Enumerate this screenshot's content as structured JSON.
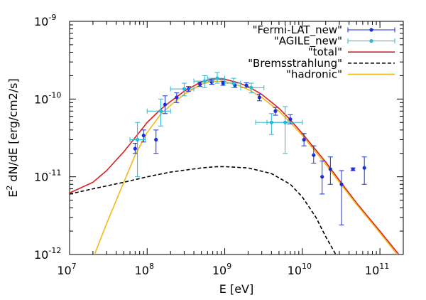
{
  "chart_data": {
    "type": "scatter",
    "xscale": "log",
    "yscale": "log",
    "xlim": [
      10000000.0,
      200000000000.0
    ],
    "ylim": [
      1e-12,
      1e-09
    ],
    "xlabel": "E [eV]",
    "ylabel_prefix": "E",
    "ylabel_sup": "2",
    "ylabel_suffix": " dN/dE [erg/cm2/s]",
    "x_ticks": [
      {
        "base": "10",
        "exp": "7",
        "value": 10000000.0
      },
      {
        "base": "10",
        "exp": "8",
        "value": 100000000.0
      },
      {
        "base": "10",
        "exp": "9",
        "value": 1000000000.0
      },
      {
        "base": "10",
        "exp": "10",
        "value": 10000000000.0
      },
      {
        "base": "10",
        "exp": "11",
        "value": 100000000000.0
      }
    ],
    "y_ticks": [
      {
        "base": "10",
        "exp": "-12",
        "value": 1e-12
      },
      {
        "base": "10",
        "exp": "-11",
        "value": 1e-11
      },
      {
        "base": "10",
        "exp": "-10",
        "value": 1e-10
      },
      {
        "base": "10",
        "exp": "-9",
        "value": 1e-09
      }
    ],
    "legend_position": "top-right",
    "series": [
      {
        "name": "\"Fermi-LAT_new\"",
        "kind": "points",
        "color": "#1a2fd8",
        "points": [
          {
            "x": 70000000.0,
            "y": 2.3e-11,
            "yerr": [
              2e-11,
              2.7e-11
            ]
          },
          {
            "x": 90000000.0,
            "y": 3.4e-11,
            "yerr": [
              2.8e-11,
              4e-11
            ]
          },
          {
            "x": 130000000.0,
            "y": 3e-11,
            "yerr": [
              2e-11,
              4e-11
            ]
          },
          {
            "x": 170000000.0,
            "y": 8.5e-11,
            "yerr": [
              6.5e-11,
              1.1e-10
            ]
          },
          {
            "x": 240000000.0,
            "y": 1.05e-10,
            "yerr": [
              9e-11,
              1.2e-10
            ]
          },
          {
            "x": 340000000.0,
            "y": 1.35e-10,
            "yerr": [
              1.25e-10,
              1.45e-10
            ]
          },
          {
            "x": 480000000.0,
            "y": 1.55e-10,
            "yerr": [
              1.45e-10,
              1.65e-10
            ]
          },
          {
            "x": 680000000.0,
            "y": 1.65e-10,
            "yerr": [
              1.55e-10,
              1.75e-10
            ]
          },
          {
            "x": 950000000.0,
            "y": 1.6e-10,
            "yerr": [
              1.5e-10,
              1.7e-10
            ]
          },
          {
            "x": 1350000000.0,
            "y": 1.5e-10,
            "yerr": [
              1.4e-10,
              1.6e-10
            ]
          },
          {
            "x": 1900000000.0,
            "y": 1.5e-10,
            "yerr": [
              1.4e-10,
              1.62e-10
            ]
          },
          {
            "x": 2800000000.0,
            "y": 1.05e-10,
            "yerr": [
              9.5e-11,
              1.15e-10
            ]
          },
          {
            "x": 4500000000.0,
            "y": 7e-11,
            "yerr": [
              6.2e-11,
              7.8e-11
            ]
          },
          {
            "x": 7000000000.0,
            "y": 5.5e-11,
            "yerr": [
              4.8e-11,
              6.3e-11
            ]
          },
          {
            "x": 10500000000.0,
            "y": 3e-11,
            "yerr": [
              2.5e-11,
              3.6e-11
            ]
          },
          {
            "x": 14000000000.0,
            "y": 1.9e-11,
            "yerr": [
              1.5e-11,
              2.5e-11
            ]
          },
          {
            "x": 18000000000.0,
            "y": 1e-11,
            "yerr": [
              6e-12,
              1.6e-11
            ]
          },
          {
            "x": 23000000000.0,
            "y": 1.25e-11,
            "yerr": [
              8e-12,
              1.8e-11
            ]
          },
          {
            "x": 32000000000.0,
            "y": 8e-12,
            "yerr": [
              2.4e-12,
              1.2e-11
            ]
          },
          {
            "x": 45000000000.0,
            "y": 1.25e-11,
            "yerr": [
              1.2e-11,
              1.3e-11
            ]
          },
          {
            "x": 63000000000.0,
            "y": 1.3e-11,
            "yerr": [
              8e-12,
              1.8e-11
            ]
          }
        ]
      },
      {
        "name": "\"AGILE_new\"",
        "kind": "points",
        "color": "#2ab8d8",
        "points": [
          {
            "x": 75000000.0,
            "y": 3e-11,
            "xerr": [
              60000000.0,
              95000000.0
            ],
            "yerr": [
              1e-11,
              5e-11
            ]
          },
          {
            "x": 150000000.0,
            "y": 7e-11,
            "xerr": [
              100000000.0,
              200000000.0
            ],
            "yerr": [
              4.5e-11,
              1e-10
            ]
          },
          {
            "x": 300000000.0,
            "y": 1.35e-10,
            "xerr": [
              200000000.0,
              400000000.0
            ],
            "yerr": [
              1.1e-10,
              1.6e-10
            ]
          },
          {
            "x": 550000000.0,
            "y": 1.7e-10,
            "xerr": [
              400000000.0,
              700000000.0
            ],
            "yerr": [
              1.4e-10,
              2e-10
            ]
          },
          {
            "x": 800000000.0,
            "y": 1.85e-10,
            "xerr": [
              600000000.0,
              1000000000.0
            ],
            "yerr": [
              1.6e-10,
              2.2e-10
            ]
          },
          {
            "x": 1300000000.0,
            "y": 1.6e-10,
            "xerr": [
              1000000000.0,
              1600000000.0
            ],
            "yerr": [
              1.4e-10,
              1.85e-10
            ]
          },
          {
            "x": 2200000000.0,
            "y": 1.4e-10,
            "xerr": [
              1600000000.0,
              3200000000.0
            ],
            "yerr": [
              1.2e-10,
              1.6e-10
            ]
          },
          {
            "x": 4000000000.0,
            "y": 5e-11,
            "xerr": [
              2500000000.0,
              6500000000.0
            ],
            "yerr": [
              3.5e-11,
              6.5e-11
            ]
          },
          {
            "x": 6000000000.0,
            "y": 5e-11,
            "xerr": [
              3500000000.0,
              10000000000.0
            ],
            "yerr": [
              2e-11,
              8e-11
            ]
          }
        ]
      },
      {
        "name": "\"total\"",
        "kind": "line",
        "color": "#dd1f1f",
        "points": [
          [
            10000000.0,
            6.2e-12
          ],
          [
            20000000.0,
            8.5e-12
          ],
          [
            30000000.0,
            1.2e-11
          ],
          [
            50000000.0,
            2.1e-11
          ],
          [
            70000000.0,
            3.2e-11
          ],
          [
            100000000.0,
            5e-11
          ],
          [
            150000000.0,
            7.4e-11
          ],
          [
            200000000.0,
            9.3e-11
          ],
          [
            300000000.0,
            1.26e-10
          ],
          [
            500000000.0,
            1.67e-10
          ],
          [
            700000000.0,
            1.82e-10
          ],
          [
            1000000000.0,
            1.8e-10
          ],
          [
            1500000000.0,
            1.62e-10
          ],
          [
            2000000000.0,
            1.45e-10
          ],
          [
            3000000000.0,
            1.15e-10
          ],
          [
            5000000000.0,
            7.6e-11
          ],
          [
            7000000000.0,
            5.4e-11
          ],
          [
            10000000000.0,
            3.6e-11
          ],
          [
            20000000000.0,
            1.55e-11
          ],
          [
            30000000000.0,
            9e-12
          ],
          [
            50000000000.0,
            4.6e-12
          ],
          [
            100000000000.0,
            2e-12
          ],
          [
            200000000000.0,
            8.5e-13
          ]
        ]
      },
      {
        "name": "\"Bremsstrahlung\"",
        "kind": "line",
        "color": "#000000",
        "dashed": true,
        "points": [
          [
            10000000.0,
            6e-12
          ],
          [
            20000000.0,
            7e-12
          ],
          [
            50000000.0,
            8.5e-12
          ],
          [
            100000000.0,
            1e-11
          ],
          [
            200000000.0,
            1.15e-11
          ],
          [
            500000000.0,
            1.3e-11
          ],
          [
            800000000.0,
            1.35e-11
          ],
          [
            1000000000.0,
            1.35e-11
          ],
          [
            2000000000.0,
            1.3e-11
          ],
          [
            4000000000.0,
            1.1e-11
          ],
          [
            7000000000.0,
            8e-12
          ],
          [
            10000000000.0,
            5.5e-12
          ],
          [
            15000000000.0,
            3e-12
          ],
          [
            20000000000.0,
            1.7e-12
          ],
          [
            27000000000.0,
            1e-12
          ]
        ]
      },
      {
        "name": "\"hadronic\"",
        "kind": "line",
        "color": "#f2b818",
        "points": [
          [
            21000000.0,
            1e-12
          ],
          [
            30000000.0,
            2.5e-12
          ],
          [
            50000000.0,
            8.5e-12
          ],
          [
            70000000.0,
            1.9e-11
          ],
          [
            100000000.0,
            3.7e-11
          ],
          [
            150000000.0,
            6.4e-11
          ],
          [
            200000000.0,
            8.3e-11
          ],
          [
            300000000.0,
            1.15e-10
          ],
          [
            500000000.0,
            1.55e-10
          ],
          [
            700000000.0,
            1.7e-10
          ],
          [
            1000000000.0,
            1.68e-10
          ],
          [
            1500000000.0,
            1.5e-10
          ],
          [
            2000000000.0,
            1.33e-10
          ],
          [
            3000000000.0,
            1.05e-10
          ],
          [
            5000000000.0,
            7e-11
          ],
          [
            7000000000.0,
            5e-11
          ],
          [
            10000000000.0,
            3.4e-11
          ],
          [
            20000000000.0,
            1.45e-11
          ],
          [
            30000000000.0,
            8.5e-12
          ],
          [
            50000000000.0,
            4.4e-12
          ],
          [
            100000000000.0,
            1.9e-12
          ],
          [
            200000000000.0,
            8e-13
          ]
        ]
      }
    ]
  }
}
